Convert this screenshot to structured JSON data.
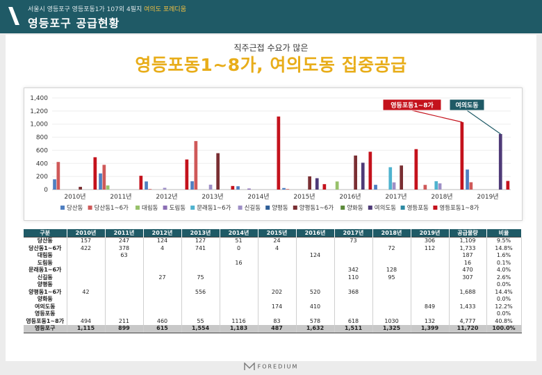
{
  "header": {
    "subtitle_prefix": "서울시 영등포구 영등포동1가 107외 4필지",
    "subtitle_highlight": "여의도 포레디움",
    "title": "영등포구 공급현황"
  },
  "headline": {
    "small": "직주근접 수요가 많은",
    "big": "영등포동1~8가, 여의도동 집중공급"
  },
  "chart_data": {
    "type": "bar",
    "categories": [
      "2010년",
      "2011년",
      "2012년",
      "2013년",
      "2014년",
      "2015년",
      "2016년",
      "2017년",
      "2018년",
      "2019년"
    ],
    "ylim": [
      0,
      1400
    ],
    "yticks": [
      "0",
      "200",
      "400",
      "600",
      "800",
      "1,000",
      "1,200",
      "1,400"
    ],
    "series": [
      {
        "name": "당산동",
        "color": "#4f7fc1",
        "values": [
          157,
          247,
          124,
          127,
          51,
          24,
          0,
          73,
          0,
          306
        ]
      },
      {
        "name": "당산동1~6가",
        "color": "#cf5959",
        "values": [
          422,
          378,
          4,
          741,
          0,
          4,
          0,
          0,
          72,
          112
        ]
      },
      {
        "name": "대림동",
        "color": "#98c16b",
        "values": [
          0,
          63,
          0,
          0,
          0,
          0,
          124,
          0,
          0,
          0
        ]
      },
      {
        "name": "도림동",
        "color": "#8c6fb5",
        "values": [
          0,
          0,
          0,
          0,
          16,
          0,
          0,
          0,
          0,
          0
        ]
      },
      {
        "name": "문래동1~6가",
        "color": "#4fb3cf",
        "values": [
          0,
          0,
          0,
          0,
          0,
          0,
          0,
          342,
          128,
          0
        ]
      },
      {
        "name": "신길동",
        "color": "#9e8fc6",
        "values": [
          0,
          0,
          27,
          75,
          0,
          0,
          0,
          110,
          95,
          0
        ]
      },
      {
        "name": "양평동",
        "color": "#2f5f97",
        "values": [
          0,
          0,
          0,
          0,
          0,
          0,
          0,
          0,
          0,
          0
        ]
      },
      {
        "name": "양평동1~6가",
        "color": "#7a2f33",
        "values": [
          42,
          0,
          0,
          556,
          0,
          202,
          520,
          368,
          0,
          0
        ]
      },
      {
        "name": "양화동",
        "color": "#5c8a3a",
        "values": [
          0,
          0,
          0,
          0,
          0,
          0,
          0,
          0,
          0,
          0
        ]
      },
      {
        "name": "여의도동",
        "color": "#4e3a77",
        "values": [
          0,
          0,
          0,
          0,
          0,
          174,
          410,
          0,
          0,
          849
        ]
      },
      {
        "name": "영등포동",
        "color": "#2d8aa3",
        "values": [
          0,
          0,
          0,
          0,
          0,
          0,
          0,
          0,
          0,
          0
        ]
      },
      {
        "name": "영등포동1~8가",
        "color": "#c4121c",
        "values": [
          494,
          211,
          460,
          55,
          1116,
          83,
          578,
          618,
          1030,
          132
        ]
      }
    ],
    "annotations": [
      {
        "text": "영등포동1~8가",
        "target": "2018년 영등포동1~8가",
        "color": "#c4121c"
      },
      {
        "text": "여의도동",
        "target": "2019년 여의도동",
        "color": "#1f5a66"
      }
    ]
  },
  "table": {
    "headers": [
      "구분",
      "2010년",
      "2011년",
      "2012년",
      "2013년",
      "2014년",
      "2015년",
      "2016년",
      "2017년",
      "2018년",
      "2019년",
      "공급물량",
      "비율"
    ],
    "rows": [
      [
        "당산동",
        "157",
        "247",
        "124",
        "127",
        "51",
        "24",
        "",
        "73",
        "",
        "306",
        "1,109",
        "9.5%"
      ],
      [
        "당산동1~6가",
        "422",
        "378",
        "4",
        "741",
        "0",
        "4",
        "",
        "",
        "72",
        "112",
        "1,733",
        "14.8%"
      ],
      [
        "대림동",
        "",
        "63",
        "",
        "",
        "",
        "",
        "124",
        "",
        "",
        "",
        "187",
        "1.6%"
      ],
      [
        "도림동",
        "",
        "",
        "",
        "",
        "16",
        "",
        "",
        "",
        "",
        "",
        "16",
        "0.1%"
      ],
      [
        "문래동1~6가",
        "",
        "",
        "",
        "",
        "",
        "",
        "",
        "342",
        "128",
        "",
        "470",
        "4.0%"
      ],
      [
        "신길동",
        "",
        "",
        "27",
        "75",
        "",
        "",
        "",
        "110",
        "95",
        "",
        "307",
        "2.6%"
      ],
      [
        "양평동",
        "",
        "",
        "",
        "",
        "",
        "",
        "",
        "",
        "",
        "",
        "",
        "0.0%"
      ],
      [
        "양평동1~6가",
        "42",
        "",
        "",
        "556",
        "",
        "202",
        "520",
        "368",
        "",
        "",
        "1,688",
        "14.4%"
      ],
      [
        "양화동",
        "",
        "",
        "",
        "",
        "",
        "",
        "",
        "",
        "",
        "",
        "",
        "0.0%"
      ],
      [
        "여의도동",
        "",
        "",
        "",
        "",
        "",
        "174",
        "410",
        "",
        "",
        "849",
        "1,433",
        "12.2%"
      ],
      [
        "영등포동",
        "",
        "",
        "",
        "",
        "",
        "",
        "",
        "",
        "",
        "",
        "",
        "0.0%"
      ],
      [
        "영등포동1~8가",
        "494",
        "211",
        "460",
        "55",
        "1116",
        "83",
        "578",
        "618",
        "1030",
        "132",
        "4,777",
        "40.8%"
      ]
    ],
    "total": [
      "영등포구",
      "1,115",
      "899",
      "615",
      "1,554",
      "1,183",
      "487",
      "1,632",
      "1,511",
      "1,325",
      "1,399",
      "11,720",
      "100.0%"
    ]
  },
  "footer": {
    "brand": "FOREDIUM"
  }
}
